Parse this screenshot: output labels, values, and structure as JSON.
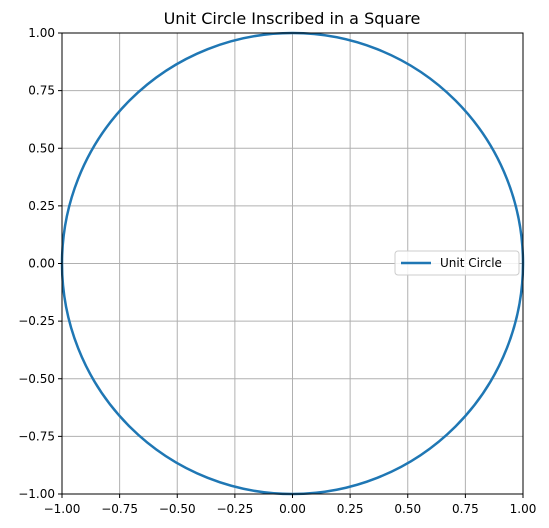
{
  "chart_data": {
    "type": "line",
    "title": "Unit Circle Inscribed in a Square",
    "xlabel": "",
    "ylabel": "",
    "xlim": [
      -1.0,
      1.0
    ],
    "ylim": [
      -1.0,
      1.0
    ],
    "x_ticks": [
      -1.0,
      -0.75,
      -0.5,
      -0.25,
      0.0,
      0.25,
      0.5,
      0.75,
      1.0
    ],
    "y_ticks": [
      -1.0,
      -0.75,
      -0.5,
      -0.25,
      0.0,
      0.25,
      0.5,
      0.75,
      1.0
    ],
    "x_tick_labels": [
      "−1.00",
      "−0.75",
      "−0.50",
      "−0.25",
      "0.00",
      "0.25",
      "0.50",
      "0.75",
      "1.00"
    ],
    "y_tick_labels": [
      "−1.00",
      "−0.75",
      "−0.50",
      "−0.25",
      "0.00",
      "0.25",
      "0.50",
      "0.75",
      "1.00"
    ],
    "grid": true,
    "legend_position": "right",
    "series": [
      {
        "name": "Unit Circle",
        "color": "#1f77b4",
        "shape": "circle",
        "center": [
          0.0,
          0.0
        ],
        "radius": 1.0
      }
    ]
  }
}
